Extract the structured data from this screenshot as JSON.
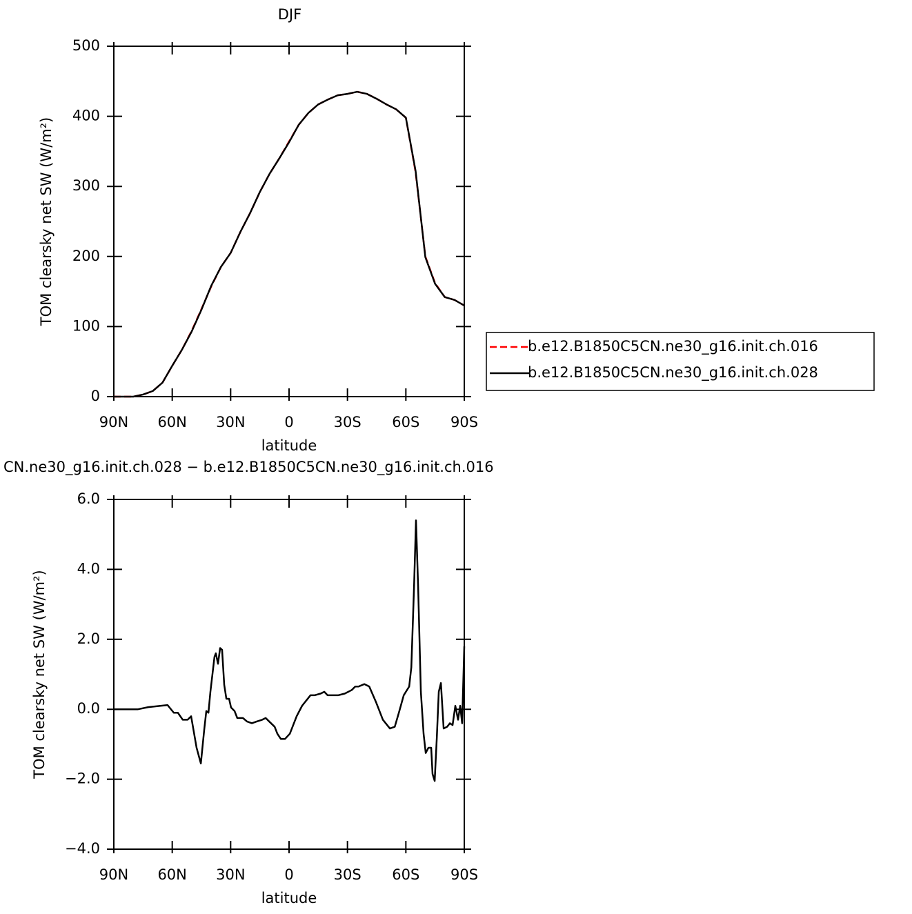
{
  "chart_data": [
    {
      "type": "line",
      "title": "DJF",
      "x_label": "latitude",
      "y_label": "TOM clearsky net SW (W/m²)",
      "x": [
        90,
        85,
        80,
        75,
        70,
        65,
        60,
        55,
        50,
        45,
        40,
        35,
        30,
        25,
        20,
        15,
        10,
        5,
        0,
        -5,
        -10,
        -15,
        -20,
        -25,
        -30,
        -35,
        -40,
        -45,
        -50,
        -55,
        -60,
        -65,
        -70,
        -75,
        -80,
        -85,
        -90
      ],
      "series": [
        {
          "name": "b.e12.B1850C5CN.ne30_g16.init.ch.016",
          "color": "#ff0000",
          "style": "dashed",
          "values": [
            0,
            0,
            0,
            3,
            8,
            20,
            44,
            67,
            94,
            125,
            157,
            185,
            205,
            235,
            262,
            292,
            318,
            340,
            364,
            388,
            405,
            417,
            424,
            430,
            432,
            435,
            432,
            425,
            417,
            410,
            398,
            320,
            200,
            162,
            142,
            138,
            130
          ]
        },
        {
          "name": "b.e12.B1850C5CN.ne30_g16.init.ch.028",
          "color": "#000000",
          "style": "solid",
          "values": [
            0,
            0,
            0,
            3,
            8,
            20,
            44,
            67,
            93,
            124,
            158,
            185,
            205,
            235,
            262,
            292,
            318,
            340,
            363,
            388,
            405,
            417,
            424,
            430,
            432,
            435,
            432,
            425,
            417,
            410,
            398,
            322,
            199,
            161,
            142,
            138,
            130
          ]
        }
      ],
      "xlim": [
        90,
        -90
      ],
      "ylim": [
        0,
        500
      ],
      "xticks": [
        {
          "value": 90,
          "label": "90N"
        },
        {
          "value": 60,
          "label": "60N"
        },
        {
          "value": 30,
          "label": "30N"
        },
        0,
        {
          "value": -30,
          "label": "30S"
        },
        {
          "value": -60,
          "label": "60S"
        },
        {
          "value": -90,
          "label": "90S"
        }
      ],
      "yticks": [
        0,
        100,
        200,
        300,
        400,
        500
      ],
      "legend": "right"
    },
    {
      "type": "line",
      "title": "CN.ne30_g16.init.ch.028 − b.e12.B1850C5CN.ne30_g16.init.ch.016",
      "x_label": "latitude",
      "y_label": "TOM clearsky net SW (W/m²)",
      "x": [
        90,
        77.6,
        72.3,
        62.4,
        59.2,
        57.1,
        54.6,
        52.1,
        50.3,
        47.5,
        45.3,
        43.6,
        42.5,
        41.4,
        40.4,
        38.3,
        37.6,
        36.5,
        35.4,
        34.4,
        33.3,
        32.2,
        30.8,
        29.8,
        28,
        26.6,
        23.7,
        21.6,
        19.1,
        16.6,
        13.8,
        12,
        10.2,
        7.4,
        6,
        4.2,
        2.1,
        -0.4,
        -3.9,
        -6.7,
        -11,
        -13.1,
        -16.3,
        -18.1,
        -19.8,
        -25.2,
        -28.7,
        -32.2,
        -34,
        -35.7,
        -38.7,
        -41.2,
        -44.7,
        -48.2,
        -51.8,
        -54.3,
        -56.4,
        -58.9,
        -61.7,
        -62.8,
        -64.2,
        -65.2,
        -66.3,
        -67.7,
        -69.1,
        -70.2,
        -71.6,
        -73,
        -73.7,
        -74.8,
        -75.9,
        -76.9,
        -78,
        -79.4,
        -81.2,
        -82.6,
        -84,
        -85.4,
        -86.8,
        -87.9,
        -88.9,
        -90
      ],
      "series": [
        {
          "color": "#000000",
          "style": "solid",
          "values": [
            0,
            0,
            0.06,
            0.12,
            -0.1,
            -0.1,
            -0.3,
            -0.3,
            -0.2,
            -1.1,
            -1.55,
            -0.6,
            -0.05,
            -0.1,
            0.5,
            1.5,
            1.6,
            1.3,
            1.75,
            1.7,
            0.7,
            0.3,
            0.3,
            0.05,
            -0.05,
            -0.25,
            -0.25,
            -0.35,
            -0.4,
            -0.35,
            -0.3,
            -0.25,
            -0.35,
            -0.5,
            -0.7,
            -0.85,
            -0.85,
            -0.7,
            -0.2,
            0.1,
            0.4,
            0.4,
            0.45,
            0.5,
            0.4,
            0.4,
            0.45,
            0.55,
            0.65,
            0.65,
            0.72,
            0.65,
            0.2,
            -0.3,
            -0.55,
            -0.5,
            -0.1,
            0.4,
            0.65,
            1.2,
            3.5,
            5.4,
            3.5,
            0.5,
            -0.7,
            -1.25,
            -1.1,
            -1.1,
            -1.85,
            -2.05,
            -0.8,
            0.5,
            0.75,
            -0.55,
            -0.5,
            -0.4,
            -0.45,
            0.1,
            -0.3,
            0.1,
            -0.4,
            1.8
          ]
        }
      ],
      "xlim": [
        90,
        -90
      ],
      "ylim": [
        -4,
        6
      ],
      "xticks": [
        {
          "value": 90,
          "label": "90N"
        },
        {
          "value": 60,
          "label": "60N"
        },
        {
          "value": 30,
          "label": "30N"
        },
        0,
        {
          "value": -30,
          "label": "30S"
        },
        {
          "value": -60,
          "label": "60S"
        },
        {
          "value": -90,
          "label": "90S"
        }
      ],
      "yticks": [
        {
          "value": -4,
          "label": "−4.0"
        },
        {
          "value": -2,
          "label": "−2.0"
        },
        {
          "value": 0,
          "label": "0.0"
        },
        {
          "value": 2,
          "label": "2.0"
        },
        {
          "value": 4,
          "label": "4.0"
        },
        {
          "value": 6,
          "label": "6.0"
        }
      ]
    }
  ]
}
